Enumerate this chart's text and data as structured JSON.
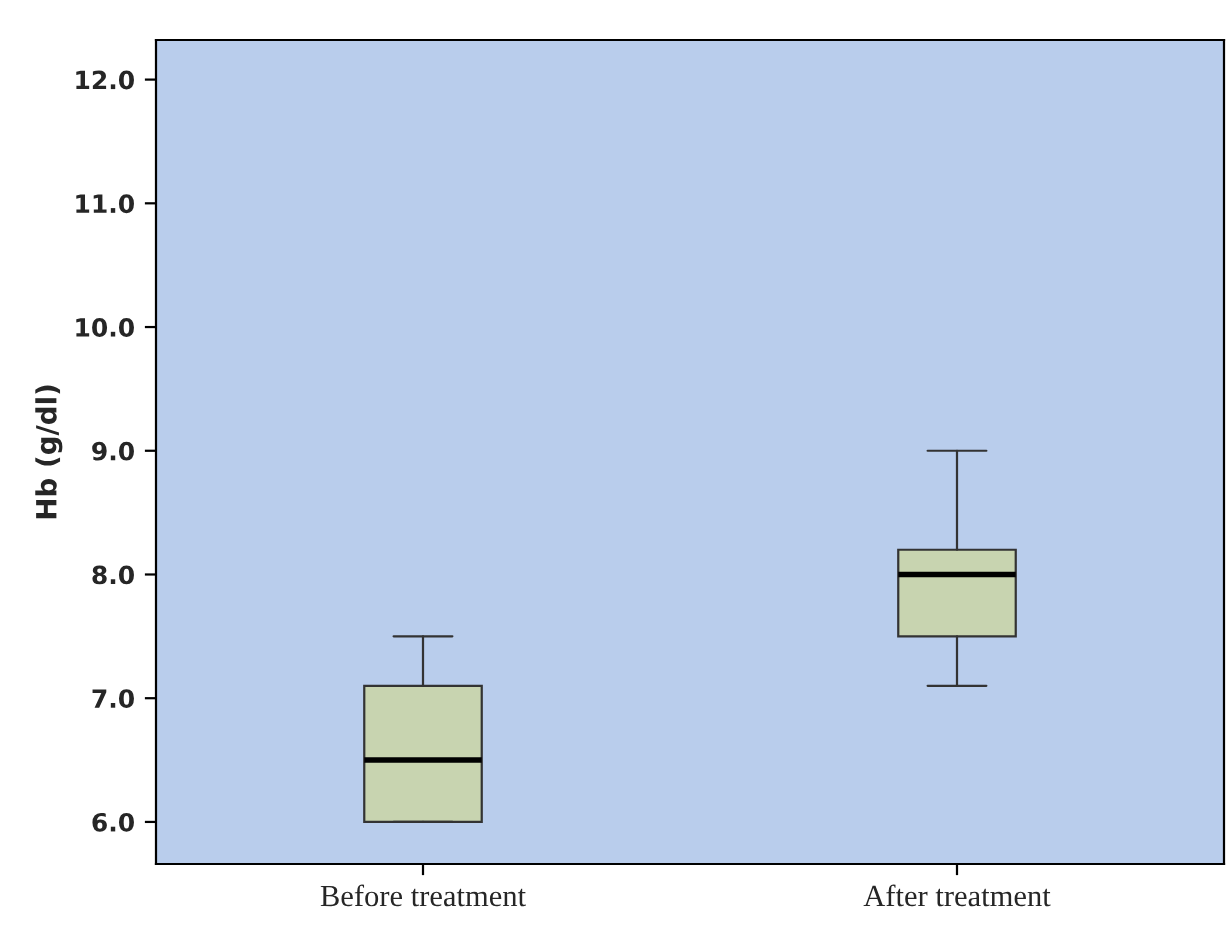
{
  "chart_data": {
    "type": "box",
    "ylabel": "Hb (g/dl)",
    "categories": [
      "Before treatment",
      "After treatment"
    ],
    "boxes": [
      {
        "low": 6.0,
        "q1": 6.0,
        "median": 6.5,
        "q3": 7.1,
        "high": 7.5
      },
      {
        "low": 7.1,
        "q1": 7.5,
        "median": 8.0,
        "q3": 8.2,
        "high": 9.0
      }
    ],
    "color": "#c8d4b0",
    "ylim": [
      5.66,
      12.32
    ],
    "yticks": [
      {
        "value": 6,
        "label": "6.0"
      },
      {
        "value": 7,
        "label": "7.0"
      },
      {
        "value": 8,
        "label": "8.0"
      },
      {
        "value": 9,
        "label": "9.0"
      },
      {
        "value": 10,
        "label": "10.0"
      },
      {
        "value": 11,
        "label": "11.0"
      },
      {
        "value": 12,
        "label": "12.0"
      }
    ],
    "grid": false
  }
}
